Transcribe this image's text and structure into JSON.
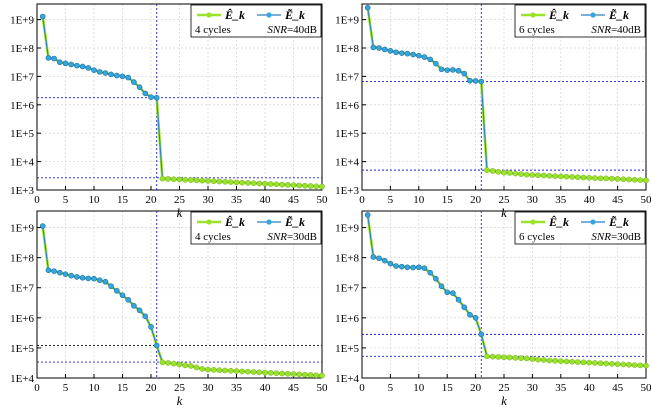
{
  "colors": {
    "series_hat": "#9be22b",
    "series_tilde": "#35a7dc",
    "series_tilde_line": "#2a7fbf",
    "ref_blue": "#1f1fd0",
    "ref_black": "#222222",
    "grid": "#d9d9d9"
  },
  "chart_data": [
    {
      "type": "line",
      "scale_y": "log",
      "xlabel": "k",
      "ylabel": "",
      "xlim": [
        0,
        50
      ],
      "ylim_exp": [
        3,
        9.55
      ],
      "xticks": [
        0,
        5,
        10,
        15,
        20,
        25,
        30,
        35,
        40,
        45,
        50
      ],
      "ytick_labels": [
        "1E+3",
        "1E+4",
        "1E+5",
        "1E+6",
        "1E+7",
        "1E+8",
        "1E+9"
      ],
      "legend_placement": "top-right",
      "series": [
        {
          "name": "Ê_k"
        },
        {
          "name": "Ẽ_k"
        }
      ],
      "annotation": {
        "cycles": "4 cycles",
        "snr_label": "SNR",
        "snr_value": "=40dB"
      },
      "x": [
        1,
        2,
        3,
        4,
        5,
        6,
        7,
        8,
        9,
        10,
        11,
        12,
        13,
        14,
        15,
        16,
        17,
        18,
        19,
        20,
        21,
        22,
        23,
        24,
        25,
        26,
        27,
        28,
        29,
        30,
        31,
        32,
        33,
        34,
        35,
        36,
        37,
        38,
        39,
        40,
        41,
        42,
        43,
        44,
        45,
        46,
        47,
        48,
        49,
        50
      ],
      "values_log10": [
        9.11,
        7.65,
        7.63,
        7.5,
        7.46,
        7.42,
        7.38,
        7.35,
        7.3,
        7.22,
        7.16,
        7.12,
        7.07,
        7.03,
        7.0,
        6.96,
        6.8,
        6.62,
        6.4,
        6.27,
        6.25,
        3.4,
        3.39,
        3.38,
        3.37,
        3.36,
        3.35,
        3.34,
        3.33,
        3.32,
        3.31,
        3.3,
        3.29,
        3.28,
        3.27,
        3.26,
        3.25,
        3.24,
        3.23,
        3.22,
        3.21,
        3.2,
        3.19,
        3.18,
        3.17,
        3.16,
        3.15,
        3.14,
        3.13,
        3.12
      ],
      "vline_x": 21,
      "hlines_log10": [
        {
          "value": 6.25,
          "color": "ref_blue"
        },
        {
          "value": 3.43,
          "color": "ref_blue"
        }
      ]
    },
    {
      "type": "line",
      "scale_y": "log",
      "xlabel": "k",
      "ylabel": "",
      "xlim": [
        0,
        50
      ],
      "ylim_exp": [
        3,
        9.55
      ],
      "xticks": [
        0,
        5,
        10,
        15,
        20,
        25,
        30,
        35,
        40,
        45,
        50
      ],
      "ytick_labels": [
        "1E+3",
        "1E+4",
        "1E+5",
        "1E+6",
        "1E+7",
        "1E+8",
        "1E+9"
      ],
      "legend_placement": "top-right",
      "series": [
        {
          "name": "Ê_k"
        },
        {
          "name": "Ẽ_k"
        }
      ],
      "annotation": {
        "cycles": "6 cycles",
        "snr_label": "SNR",
        "snr_value": "=40dB"
      },
      "x": [
        1,
        2,
        3,
        4,
        5,
        6,
        7,
        8,
        9,
        10,
        11,
        12,
        13,
        14,
        15,
        16,
        17,
        18,
        19,
        20,
        21,
        22,
        23,
        24,
        25,
        26,
        27,
        28,
        29,
        30,
        31,
        32,
        33,
        34,
        35,
        36,
        37,
        38,
        39,
        40,
        41,
        42,
        43,
        44,
        45,
        46,
        47,
        48,
        49,
        50
      ],
      "values_log10": [
        9.42,
        8.02,
        8.0,
        7.95,
        7.9,
        7.85,
        7.82,
        7.8,
        7.77,
        7.73,
        7.68,
        7.6,
        7.45,
        7.25,
        7.22,
        7.23,
        7.2,
        7.1,
        6.85,
        6.84,
        6.82,
        3.7,
        3.67,
        3.64,
        3.61,
        3.6,
        3.58,
        3.56,
        3.54,
        3.53,
        3.52,
        3.51,
        3.5,
        3.49,
        3.48,
        3.47,
        3.46,
        3.45,
        3.44,
        3.43,
        3.42,
        3.41,
        3.41,
        3.4,
        3.39,
        3.38,
        3.37,
        3.36,
        3.35,
        3.34
      ],
      "vline_x": 21,
      "hlines_log10": [
        {
          "value": 6.82,
          "color": "ref_blue"
        },
        {
          "value": 3.7,
          "color": "ref_blue"
        }
      ]
    },
    {
      "type": "line",
      "scale_y": "log",
      "xlabel": "k",
      "ylabel": "",
      "xlim": [
        0,
        50
      ],
      "ylim_exp": [
        4,
        9.55
      ],
      "xticks": [
        0,
        5,
        10,
        15,
        20,
        25,
        30,
        35,
        40,
        45,
        50
      ],
      "ytick_labels": [
        "1E+4",
        "1E+5",
        "1E+6",
        "1E+7",
        "1E+8",
        "1E+9"
      ],
      "legend_placement": "top-right",
      "series": [
        {
          "name": "Ê_k"
        },
        {
          "name": "Ẽ_k"
        }
      ],
      "annotation": {
        "cycles": "4 cycles",
        "snr_label": "SNR",
        "snr_value": "=30dB"
      },
      "x": [
        1,
        2,
        3,
        4,
        5,
        6,
        7,
        8,
        9,
        10,
        11,
        12,
        13,
        14,
        15,
        16,
        17,
        18,
        19,
        20,
        21,
        22,
        23,
        24,
        25,
        26,
        27,
        28,
        29,
        30,
        31,
        32,
        33,
        34,
        35,
        36,
        37,
        38,
        39,
        40,
        41,
        42,
        43,
        44,
        45,
        46,
        47,
        48,
        49,
        50
      ],
      "values_log10": [
        9.05,
        7.58,
        7.55,
        7.5,
        7.45,
        7.4,
        7.36,
        7.33,
        7.31,
        7.3,
        7.25,
        7.2,
        7.05,
        6.9,
        6.75,
        6.6,
        6.4,
        6.25,
        6.05,
        5.7,
        5.08,
        4.52,
        4.5,
        4.48,
        4.45,
        4.42,
        4.4,
        4.35,
        4.3,
        4.28,
        4.27,
        4.26,
        4.25,
        4.24,
        4.23,
        4.22,
        4.21,
        4.2,
        4.19,
        4.18,
        4.17,
        4.16,
        4.15,
        4.14,
        4.13,
        4.12,
        4.11,
        4.1,
        4.09,
        4.08
      ],
      "vline_x": 21,
      "hlines_log10": [
        {
          "value": 5.08,
          "color": "ref_black"
        },
        {
          "value": 4.53,
          "color": "ref_blue"
        }
      ]
    },
    {
      "type": "line",
      "scale_y": "log",
      "xlabel": "k",
      "ylabel": "",
      "xlim": [
        0,
        50
      ],
      "ylim_exp": [
        4,
        9.55
      ],
      "xticks": [
        0,
        5,
        10,
        15,
        20,
        25,
        30,
        35,
        40,
        45,
        50
      ],
      "ytick_labels": [
        "1E+4",
        "1E+5",
        "1E+6",
        "1E+7",
        "1E+8",
        "1E+9"
      ],
      "legend_placement": "top-right",
      "series": [
        {
          "name": "Ê_k"
        },
        {
          "name": "Ẽ_k"
        }
      ],
      "annotation": {
        "cycles": "6 cycles",
        "snr_label": "SNR",
        "snr_value": "=30dB"
      },
      "x": [
        1,
        2,
        3,
        4,
        5,
        6,
        7,
        8,
        9,
        10,
        11,
        12,
        13,
        14,
        15,
        16,
        17,
        18,
        19,
        20,
        21,
        22,
        23,
        24,
        25,
        26,
        27,
        28,
        29,
        30,
        31,
        32,
        33,
        34,
        35,
        36,
        37,
        38,
        39,
        40,
        41,
        42,
        43,
        44,
        45,
        46,
        47,
        48,
        49,
        50
      ],
      "values_log10": [
        9.42,
        8.02,
        7.98,
        7.9,
        7.8,
        7.72,
        7.7,
        7.68,
        7.67,
        7.68,
        7.65,
        7.5,
        7.3,
        7.05,
        6.85,
        6.82,
        6.6,
        6.35,
        6.1,
        6.0,
        5.45,
        4.72,
        4.71,
        4.7,
        4.69,
        4.68,
        4.67,
        4.66,
        4.65,
        4.63,
        4.61,
        4.6,
        4.58,
        4.57,
        4.56,
        4.55,
        4.54,
        4.53,
        4.52,
        4.51,
        4.5,
        4.49,
        4.48,
        4.47,
        4.46,
        4.45,
        4.44,
        4.43,
        4.42,
        4.41
      ],
      "vline_x": 21,
      "hlines_log10": [
        {
          "value": 5.45,
          "color": "ref_blue"
        },
        {
          "value": 4.72,
          "color": "ref_blue"
        }
      ]
    }
  ]
}
